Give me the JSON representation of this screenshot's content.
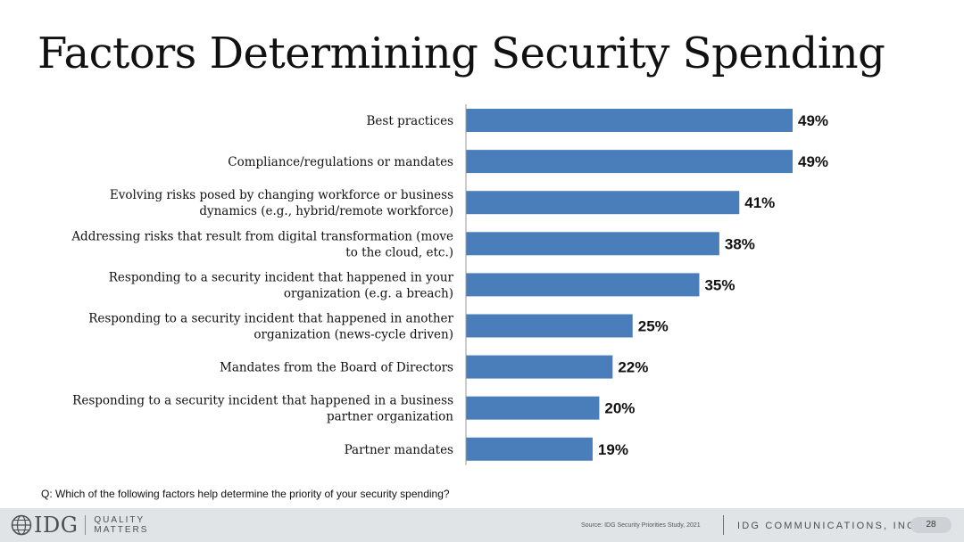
{
  "page": {
    "title": "Factors Determining Security Spending",
    "question": "Q: Which of the following factors help determine the priority of your security spending?"
  },
  "chart_data": {
    "type": "bar",
    "orientation": "horizontal",
    "title": "Factors Determining Security Spending",
    "xlabel": "",
    "ylabel": "",
    "xlim": [
      0,
      60
    ],
    "grid": false,
    "legend": "none",
    "bar_color": "#4a7ebb",
    "categories": [
      "Best practices",
      "Compliance/regulations or mandates",
      "Evolving risks posed by changing workforce or business dynamics (e.g., hybrid/remote workforce)",
      "Addressing risks that result from digital transformation (move to the cloud, etc.)",
      "Responding to a security incident that happened in your organization (e.g. a breach)",
      "Responding to a security incident that happened in another organization (news-cycle driven)",
      "Mandates from the Board of Directors",
      "Responding to a security incident that happened in a business partner organization",
      "Partner mandates"
    ],
    "category_lines": [
      [
        "Best practices"
      ],
      [
        "Compliance/regulations or mandates"
      ],
      [
        "Evolving risks posed by changing workforce or business",
        "dynamics (e.g., hybrid/remote workforce)"
      ],
      [
        "Addressing risks that result from digital transformation (move",
        "to the cloud, etc.)"
      ],
      [
        "Responding to a security incident that happened in your",
        "organization (e.g. a breach)"
      ],
      [
        "Responding to a security incident that happened in another",
        "organization (news-cycle driven)"
      ],
      [
        "Mandates from the Board of Directors"
      ],
      [
        "Responding to a security incident that happened in a business",
        "partner organization"
      ],
      [
        "Partner mandates"
      ]
    ],
    "values": [
      49,
      49,
      41,
      38,
      35,
      25,
      22,
      20,
      19
    ],
    "data_labels": [
      "49%",
      "49%",
      "41%",
      "38%",
      "35%",
      "25%",
      "22%",
      "20%",
      "19%"
    ]
  },
  "footer": {
    "logo": "IDG",
    "tagline_line1": "QUALITY",
    "tagline_line2": "MATTERS",
    "source": "Source: IDG Security Priorities Study, 2021",
    "company": "IDG COMMUNICATIONS, INC.",
    "page_number": "28"
  }
}
